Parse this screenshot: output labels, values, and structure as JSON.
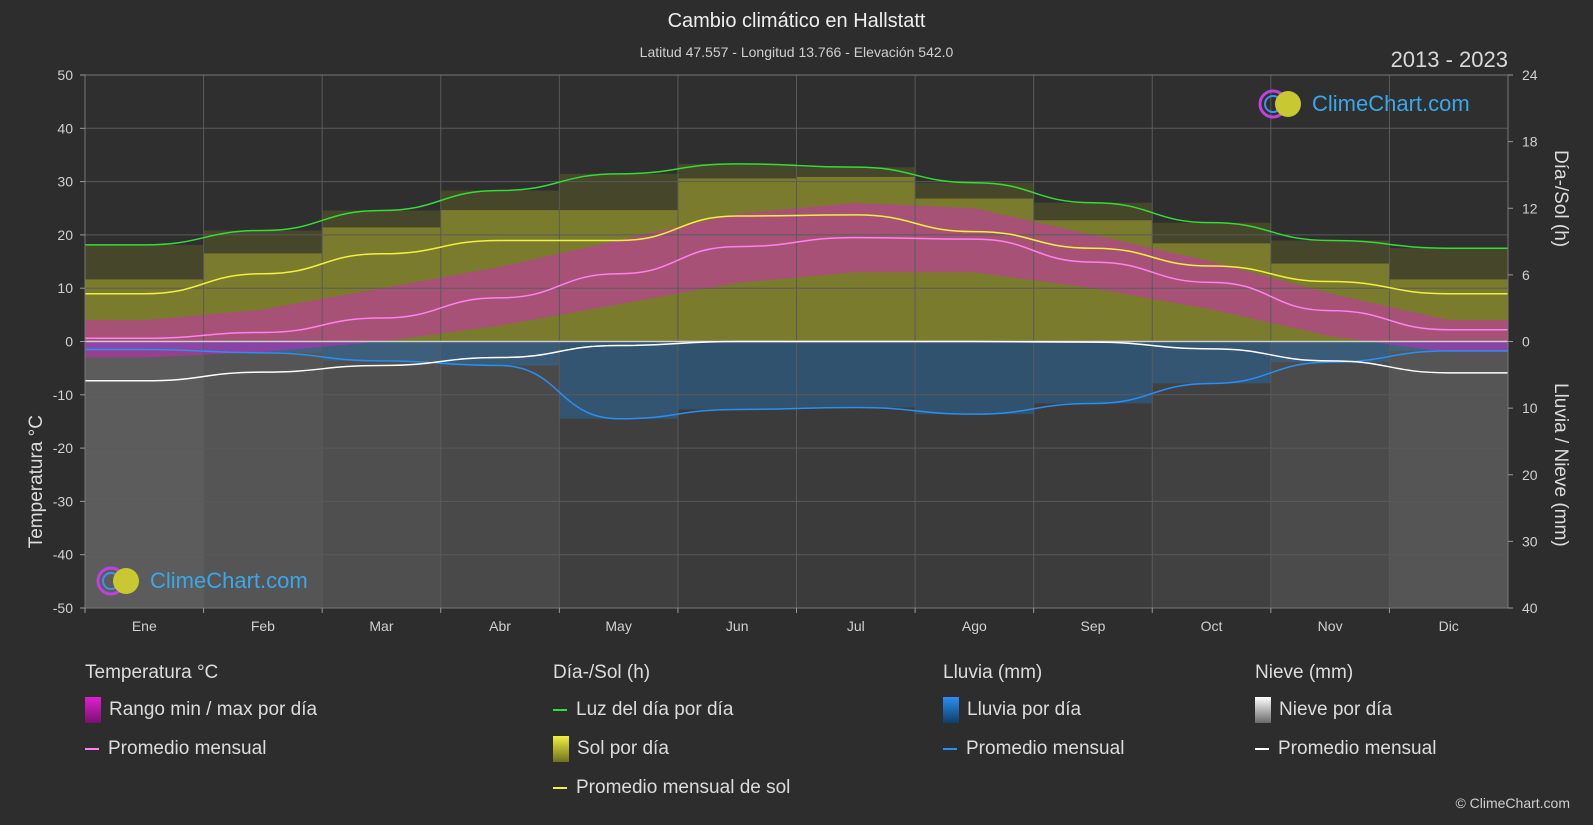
{
  "header": {
    "title": "Cambio climático en Hallstatt",
    "subtitle": "Latitud 47.557 - Longitud 13.766 - Elevación 542.0",
    "years": "2013 - 2023"
  },
  "axes": {
    "left_title": "Temperatura °C",
    "right_top_title": "Día-/Sol (h)",
    "right_bottom_title": "Lluvia / Nieve (mm)"
  },
  "logo": {
    "text": "ClimeChart.com"
  },
  "copyright": "© ClimeChart.com",
  "legend": {
    "temperature": {
      "header": "Temperatura °C",
      "range": "Rango min / max por día",
      "avg": "Promedio mensual"
    },
    "sun": {
      "header": "Día-/Sol (h)",
      "daylight": "Luz del día por día",
      "sun_day": "Sol por día",
      "sun_avg": "Promedio mensual de sol"
    },
    "rain": {
      "header": "Lluvia (mm)",
      "rain_day": "Lluvia por día",
      "avg": "Promedio mensual"
    },
    "snow": {
      "header": "Nieve (mm)",
      "snow_day": "Nieve por día",
      "avg": "Promedio mensual"
    }
  },
  "colors": {
    "background": "#2d2d2d",
    "temp_range": "#e020d0",
    "temp_avg": "#ff80f0",
    "daylight": "#33dd33",
    "sun_bar": "#bcbc30",
    "sun_avg": "#f0f040",
    "rain": "#1e7fd0",
    "rain_avg": "#2a8ff0",
    "snow": "#dcdcdc",
    "snow_avg": "#ffffff"
  },
  "chart_data": {
    "type": "line",
    "months": [
      "Ene",
      "Feb",
      "Mar",
      "Abr",
      "May",
      "Jun",
      "Jul",
      "Ago",
      "Sep",
      "Oct",
      "Nov",
      "Dic"
    ],
    "left_axis": {
      "label": "Temperatura °C",
      "ticks": [
        50,
        40,
        30,
        20,
        10,
        0,
        -10,
        -20,
        -30,
        -40,
        -50
      ],
      "ylim": [
        -50,
        50
      ]
    },
    "right_axis_top": {
      "label": "Día-/Sol (h)",
      "ticks": [
        24,
        18,
        12,
        6,
        0
      ],
      "ylim": [
        0,
        24
      ]
    },
    "right_axis_bottom": {
      "label": "Lluvia / Nieve (mm)",
      "ticks": [
        0,
        10,
        20,
        30,
        40
      ],
      "ylim": [
        0,
        40
      ]
    },
    "series": [
      {
        "name": "Luz del día por día",
        "axis": "hours",
        "values": [
          8.7,
          10.0,
          11.8,
          13.6,
          15.1,
          16.0,
          15.7,
          14.3,
          12.5,
          10.7,
          9.1,
          8.4
        ]
      },
      {
        "name": "Promedio mensual de sol",
        "axis": "hours",
        "values": [
          4.3,
          6.1,
          7.9,
          9.1,
          9.1,
          11.3,
          11.4,
          9.9,
          8.4,
          6.8,
          5.4,
          4.3
        ]
      },
      {
        "name": "Promedio mensual",
        "group": "temperature",
        "axis": "temp",
        "values": [
          0.6,
          1.7,
          4.4,
          8.2,
          12.7,
          17.8,
          19.5,
          19.2,
          14.9,
          11.1,
          5.8,
          2.2
        ]
      },
      {
        "name": "Promedio mensual",
        "group": "rain",
        "axis": "mm",
        "values": [
          1.2,
          1.7,
          2.9,
          3.6,
          11.6,
          10.2,
          9.9,
          10.9,
          9.3,
          6.3,
          3.1,
          1.4
        ]
      },
      {
        "name": "Promedio mensual",
        "group": "snow",
        "axis": "mm",
        "values": [
          5.9,
          4.6,
          3.6,
          2.4,
          0.6,
          0.0,
          0.0,
          0.0,
          0.1,
          1.1,
          2.9,
          4.7
        ]
      }
    ],
    "temp_range_band": {
      "min": [
        -3,
        -2,
        0,
        3,
        7,
        11,
        13,
        13,
        10,
        6,
        1,
        -2
      ],
      "max": [
        4,
        6,
        10,
        14,
        19,
        24,
        26,
        25,
        20,
        15,
        9,
        4
      ]
    },
    "grid": true
  }
}
